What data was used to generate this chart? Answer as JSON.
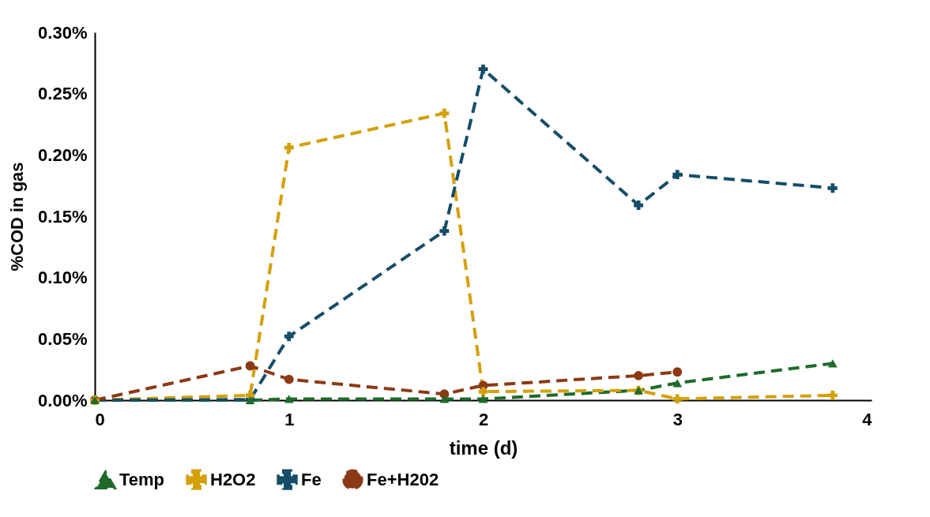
{
  "chart_data": {
    "type": "line",
    "xlabel": "time (d)",
    "ylabel": "%COD in gas",
    "xlim": [
      0,
      4
    ],
    "xticks": [
      0,
      1,
      2,
      3,
      4
    ],
    "ylim": [
      0,
      0.3
    ],
    "yticks": [
      {
        "value": 0,
        "label": "0.00%"
      },
      {
        "value": 0.05,
        "label": "0.05%"
      },
      {
        "value": 0.1,
        "label": "0.10%"
      },
      {
        "value": 0.15,
        "label": "0.15%"
      },
      {
        "value": 0.2,
        "label": "0.20%"
      },
      {
        "value": 0.25,
        "label": "0.25%"
      },
      {
        "value": 0.3,
        "label": "0.30%"
      }
    ],
    "grid": false,
    "legend": "bottom",
    "line_style": "dashed",
    "series": [
      {
        "name": "Temp",
        "color": "#1e6b2a",
        "marker": "triangle",
        "x": [
          0,
          0.8,
          1,
          1.8,
          2,
          2.8,
          3,
          3.8
        ],
        "values": [
          0,
          0,
          0.001,
          0.001,
          0.001,
          0.008,
          0.014,
          0.03
        ]
      },
      {
        "name": "H2O2",
        "color": "#d4a00a",
        "marker": "cross",
        "x": [
          0,
          0.8,
          1,
          1.8,
          2,
          2.8,
          3,
          3.8
        ],
        "values": [
          0,
          0.004,
          0.206,
          0.234,
          0.007,
          0.008,
          0.001,
          0.004
        ]
      },
      {
        "name": "Fe",
        "color": "#154d68",
        "marker": "cross",
        "x": [
          0,
          0.8,
          1,
          1.8,
          2,
          2.8,
          3,
          3.8
        ],
        "values": [
          0,
          0.0005,
          0.052,
          0.138,
          0.27,
          0.159,
          0.184,
          0.173
        ]
      },
      {
        "name": "Fe+H202",
        "color": "#8b3a15",
        "marker": "circle",
        "x": [
          0,
          0.8,
          1,
          1.8,
          2,
          2.8,
          3
        ],
        "values": [
          0,
          0.028,
          0.017,
          0.005,
          0.012,
          0.02,
          0.023
        ]
      }
    ]
  }
}
